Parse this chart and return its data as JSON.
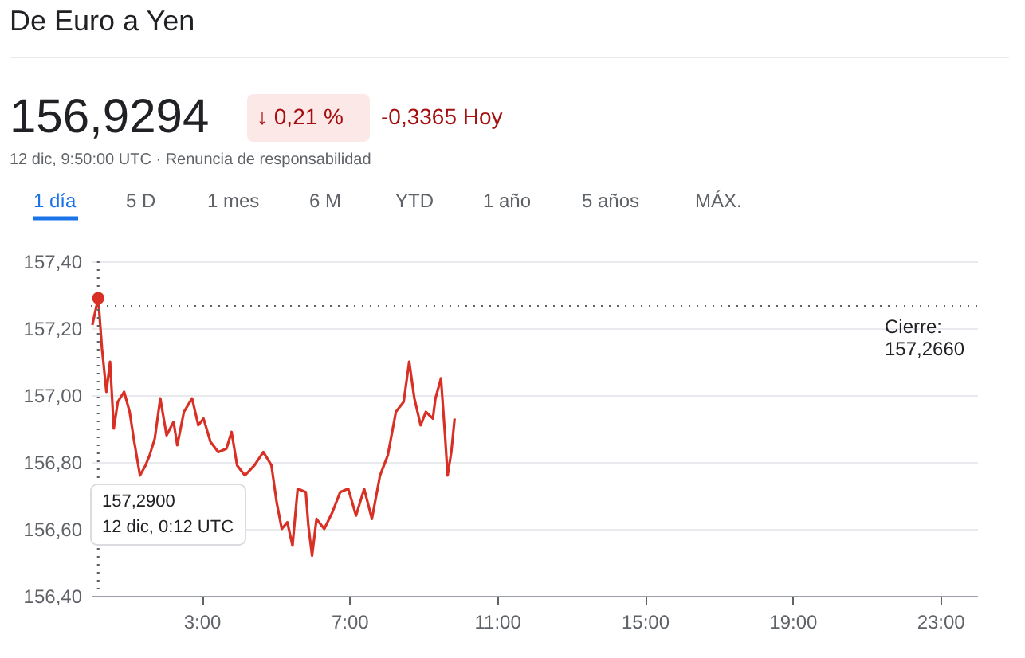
{
  "chart_data": {
    "type": "line",
    "title": "De Euro a Yen",
    "annotations": [
      "156,9294",
      "↓ 0,21 %",
      "-0,3365 Hoy",
      "12 dic, 9:50:00 UTC · Renuncia de responsabilidad",
      "1 día",
      "5 D",
      "1 mes",
      "6 M",
      "YTD",
      "1 año",
      "5 años",
      "MÁX.",
      "157,2900\n12 dic, 0:12 UTC"
    ],
    "x": [
      0.04,
      0.2,
      0.3,
      0.42,
      0.52,
      0.62,
      0.73,
      0.9,
      1.05,
      1.16,
      1.33,
      1.48,
      1.59,
      1.73,
      1.88,
      2.05,
      2.24,
      2.34,
      2.52,
      2.74,
      2.91,
      3.05,
      3.24,
      3.45,
      3.67,
      3.81,
      3.96,
      4.17,
      4.43,
      4.67,
      4.89,
      5.03,
      5.17,
      5.32,
      5.46,
      5.6,
      5.82,
      5.89,
      5.99,
      6.11,
      6.32,
      6.54,
      6.75,
      6.97,
      7.18,
      7.4,
      7.61,
      7.83,
      8.04,
      8.26,
      8.47,
      8.62,
      8.76,
      8.93,
      9.07,
      9.26,
      9.33,
      9.48,
      9.59,
      9.66,
      9.76,
      9.85
    ],
    "series": [
      {
        "color": "#d93025",
        "values": [
          157.21,
          157.29,
          157.14,
          157.01,
          157.1,
          156.9,
          156.98,
          157.01,
          156.95,
          156.87,
          156.76,
          156.79,
          156.82,
          156.87,
          156.99,
          156.88,
          156.92,
          156.85,
          156.95,
          156.99,
          156.91,
          156.93,
          156.86,
          156.83,
          156.84,
          156.89,
          156.79,
          156.76,
          156.79,
          156.83,
          156.79,
          156.68,
          156.6,
          156.62,
          156.55,
          156.72,
          156.71,
          156.61,
          156.52,
          156.63,
          156.6,
          156.65,
          156.71,
          156.72,
          156.64,
          156.72,
          156.63,
          156.76,
          156.82,
          156.95,
          156.98,
          157.1,
          156.99,
          156.91,
          156.95,
          156.93,
          156.99,
          157.05,
          156.88,
          156.76,
          156.83,
          156.93
        ]
      }
    ],
    "xlim": [
      0,
      24
    ],
    "xticks": [
      {
        "value": 3,
        "label": "3:00"
      },
      {
        "value": 7,
        "label": "7:00"
      },
      {
        "value": 11,
        "label": "11:00"
      },
      {
        "value": 15,
        "label": "15:00"
      },
      {
        "value": 19,
        "label": "19:00"
      },
      {
        "value": 23,
        "label": "23:00"
      }
    ],
    "ylim": [
      156.4,
      157.4
    ],
    "yticks": [
      {
        "value": 156.4,
        "label": "156,40"
      },
      {
        "value": 156.6,
        "label": "156,60"
      },
      {
        "value": 156.8,
        "label": "156,80"
      },
      {
        "value": 157.0,
        "label": "157,00"
      },
      {
        "value": 157.2,
        "label": "157,20"
      },
      {
        "value": 157.4,
        "label": "157,40"
      }
    ],
    "ref_lines": [
      {
        "axis": "y",
        "value": 157.266,
        "label": "Cierre:\n157,2660",
        "line_style": "dotted",
        "color": "#5f6368"
      },
      {
        "axis": "x",
        "value": 0.2,
        "line_style": "dotted",
        "color": "#5f6368"
      }
    ],
    "grid": "y"
  }
}
